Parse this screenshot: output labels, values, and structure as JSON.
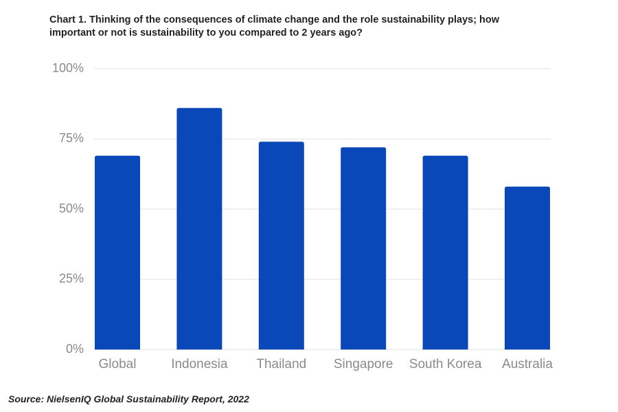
{
  "chart_data": {
    "type": "bar",
    "title": "Chart 1. Thinking of the consequences of climate change and the role sustainability plays; how important or not is sustainability to you compared to 2 years ago?",
    "source": "Source: NielsenIQ Global Sustainability Report, 2022",
    "categories": [
      "Global",
      "Indonesia",
      "Thailand",
      "Singapore",
      "South Korea",
      "Australia"
    ],
    "values": [
      69,
      86,
      74,
      72,
      69,
      58
    ],
    "color": "#0a47b8",
    "ylim": [
      0,
      100
    ],
    "yticks": [
      {
        "value": 0,
        "label": "0%"
      },
      {
        "value": 25,
        "label": "25%"
      },
      {
        "value": 50,
        "label": "50%"
      },
      {
        "value": 75,
        "label": "75%"
      },
      {
        "value": 100,
        "label": "100%"
      }
    ],
    "grid": true
  }
}
